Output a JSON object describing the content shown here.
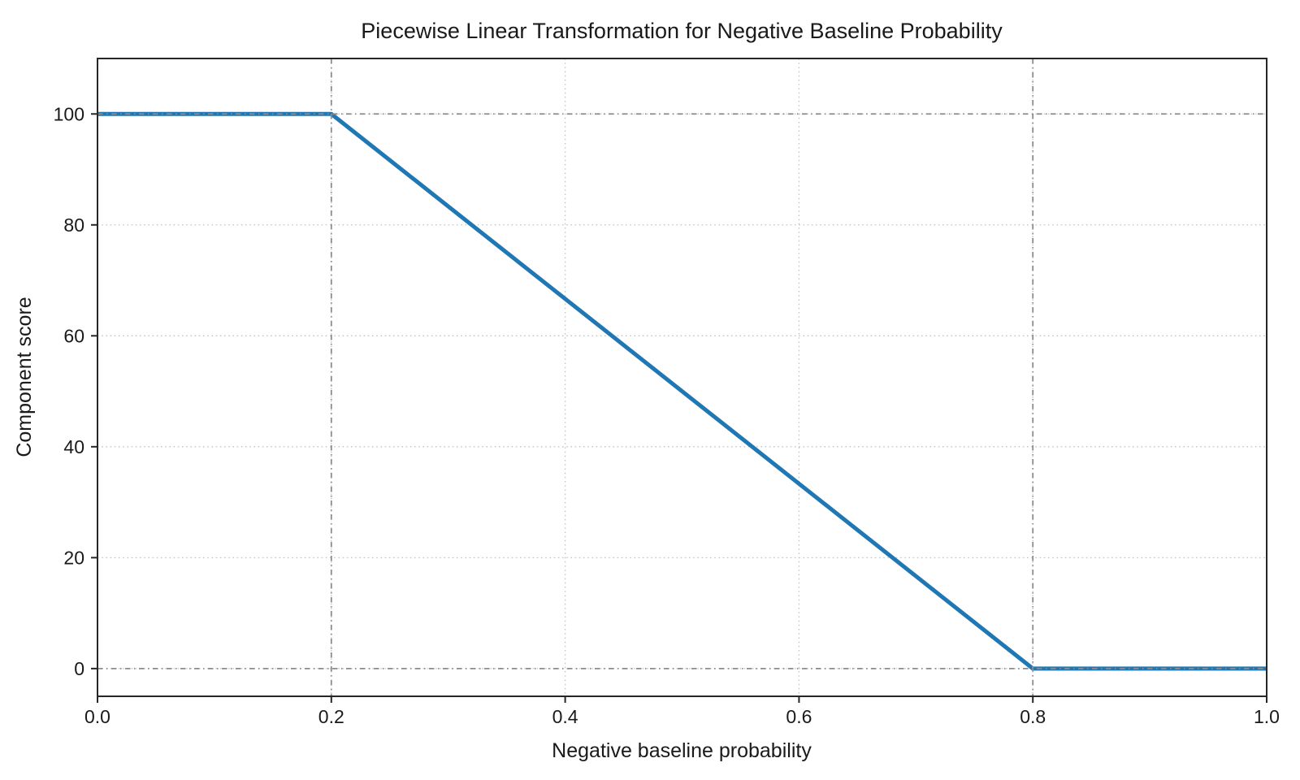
{
  "chart_data": {
    "type": "line",
    "title": "Piecewise Linear Transformation for Negative Baseline Probability",
    "xlabel": "Negative baseline probability",
    "ylabel": "Component score",
    "xlim": [
      0,
      1
    ],
    "ylim": [
      -5,
      110
    ],
    "xticks": [
      0.0,
      0.2,
      0.4,
      0.6,
      0.8,
      1.0
    ],
    "xtick_labels": [
      "0.0",
      "0.2",
      "0.4",
      "0.6",
      "0.8",
      "1.0"
    ],
    "yticks": [
      0,
      20,
      40,
      60,
      80,
      100
    ],
    "ytick_labels": [
      "0",
      "20",
      "40",
      "60",
      "80",
      "100"
    ],
    "grid": "dotted",
    "legend": "none",
    "series": [
      {
        "name": "piecewise-transform",
        "color": "#1f77b4",
        "points": [
          [
            0.0,
            100
          ],
          [
            0.2,
            100
          ],
          [
            0.8,
            0
          ],
          [
            1.0,
            0
          ]
        ]
      }
    ],
    "reference_lines": {
      "style": "dash-dot",
      "color": "#8c8c8c",
      "x": [
        0.2,
        0.8
      ],
      "y": [
        0,
        100
      ]
    }
  },
  "colors": {
    "line": "#1f77b4",
    "grid": "#c4c4c4",
    "reference": "#8c8c8c",
    "spine": "#262626",
    "text": "#1a1a1a",
    "background": "#ffffff"
  }
}
